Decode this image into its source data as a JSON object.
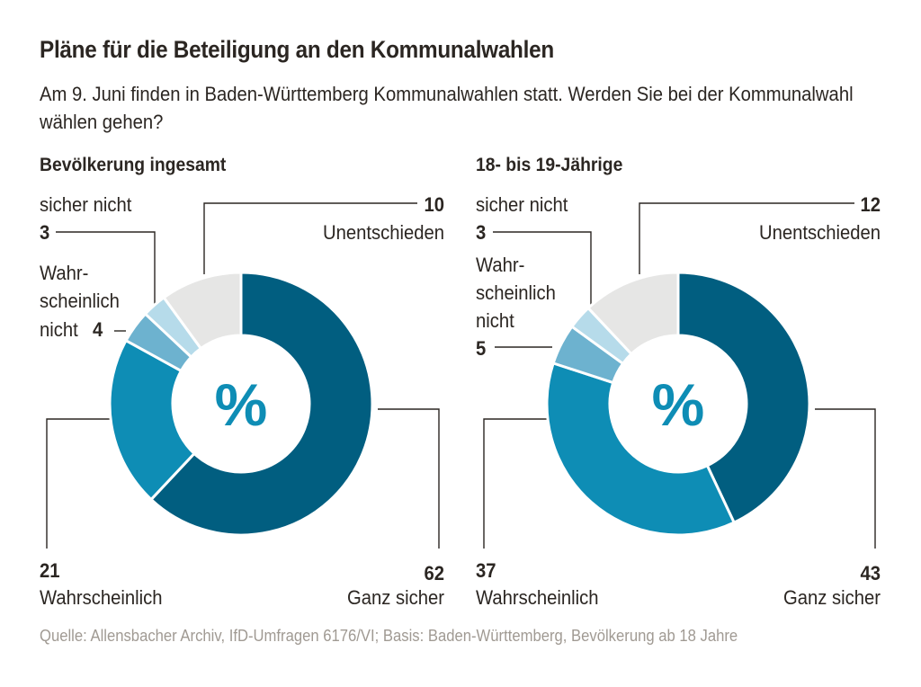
{
  "title": "Pläne für die Beteiligung an den Kommunalwahlen",
  "subtitle": "Am 9. Juni finden in Baden-Württemberg Kommunalwahlen statt. Werden Sie bei der Kommunalwahl wählen gehen?",
  "source": "Quelle: Allensbacher Archiv, IfD-Umfragen 6176/VI; Basis: Baden-Württemberg, Bevölkerung ab 18 Jahre",
  "center_label": "%",
  "colors": {
    "ganz_sicher": "#015e80",
    "wahrscheinlich": "#0e8db5",
    "wahrscheinlich_nicht": "#6db2cf",
    "sicher_nicht": "#b6dbea",
    "unentschieden": "#e6e6e5",
    "center_label": "#0e8db5"
  },
  "chart_data": [
    {
      "type": "pie",
      "subtitle": "Bevölkerung ingesamt",
      "categories": [
        "Ganz sicher",
        "Wahrscheinlich",
        "Wahrscheinlich nicht",
        "sicher nicht",
        "Unentschieden"
      ],
      "values": [
        62,
        21,
        4,
        3,
        10
      ],
      "unit": "%"
    },
    {
      "type": "pie",
      "subtitle": "18- bis 19-Jährige",
      "categories": [
        "Ganz sicher",
        "Wahrscheinlich",
        "Wahrscheinlich nicht",
        "sicher nicht",
        "Unentschieden"
      ],
      "values": [
        43,
        37,
        5,
        3,
        12
      ],
      "unit": "%"
    }
  ]
}
